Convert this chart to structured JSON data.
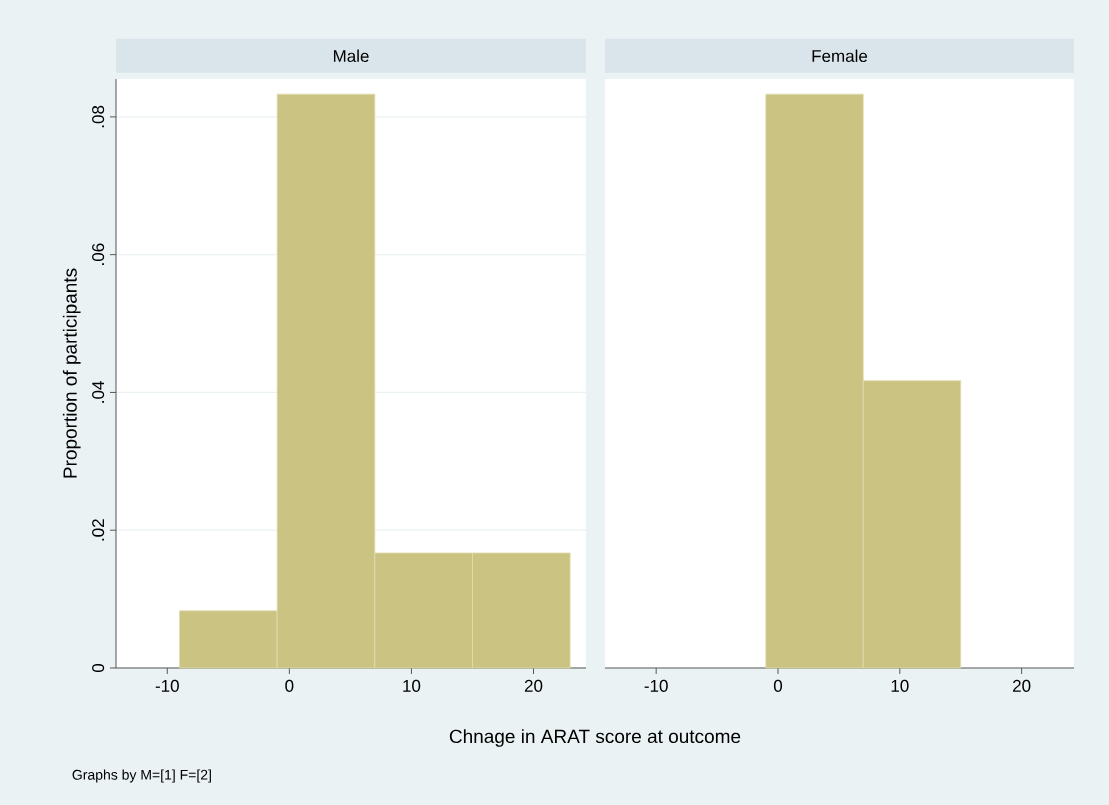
{
  "chart_data": [
    {
      "type": "histogram",
      "title": "Male",
      "ylabel": "Proportion of participants",
      "xlabel": "Chnage in ARAT score at outcome",
      "annotations": [
        "Graphs by M=[1] F=[2]"
      ],
      "bins": [
        -9,
        -1,
        7,
        15,
        23
      ],
      "values": [
        0.0083,
        0.0833,
        0.0167,
        0.0167
      ],
      "color": "#cbc382",
      "xlim": [
        -14.2,
        24.3
      ],
      "xticks": [
        -10,
        0,
        10,
        20
      ],
      "ylim": [
        0,
        0.0855
      ],
      "yticks": [
        0,
        {
          "value": 0.02,
          "label": ".02"
        },
        {
          "value": 0.04,
          "label": ".04"
        },
        {
          "value": 0.06,
          "label": ".06"
        },
        {
          "value": 0.08,
          "label": ".08"
        }
      ],
      "grid": "y"
    },
    {
      "type": "histogram",
      "title": "Female",
      "bins": [
        -1,
        7,
        15
      ],
      "values": [
        0.0833,
        0.0417
      ],
      "color": "#cbc382",
      "xlim": [
        -14.2,
        24.3
      ],
      "xticks": [
        -10,
        0,
        10,
        20
      ],
      "ylim": [
        0,
        0.0855
      ],
      "yticks": [
        {
          "value": 0,
          "label": null
        },
        {
          "value": 0.02,
          "label": null
        },
        {
          "value": 0.04,
          "label": null
        },
        {
          "value": 0.06,
          "label": null
        },
        {
          "value": 0.08,
          "label": null
        }
      ],
      "grid": "y",
      "tick_labels": "x"
    }
  ]
}
